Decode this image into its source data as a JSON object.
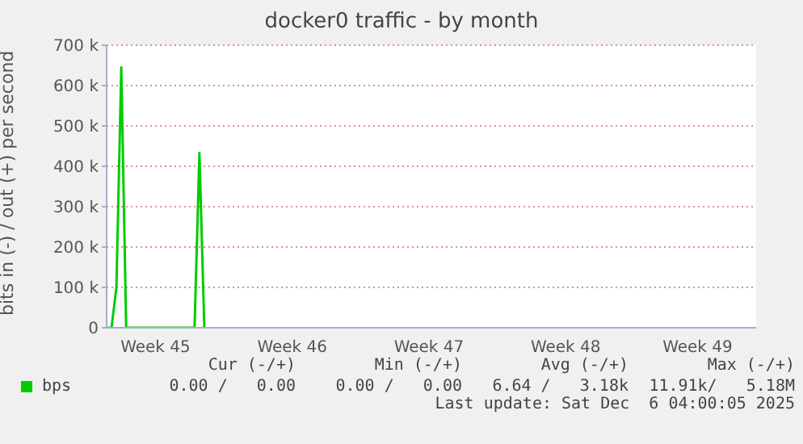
{
  "chart_data": {
    "type": "line",
    "title": "docker0 traffic - by month",
    "ylabel": "bits in (-) / out (+) per second",
    "categories": [
      null,
      null,
      null,
      null,
      null,
      null,
      null,
      null,
      null,
      null,
      "Week 45",
      null,
      null,
      null,
      null,
      null,
      null,
      null,
      null,
      null,
      null,
      null,
      null,
      null,
      null,
      null,
      null,
      null,
      null,
      null,
      null,
      null,
      null,
      null,
      null,
      null,
      null,
      null,
      "Week 46",
      null,
      null,
      null,
      null,
      null,
      null,
      null,
      null,
      null,
      null,
      null,
      null,
      null,
      null,
      null,
      null,
      null,
      null,
      null,
      null,
      null,
      null,
      null,
      null,
      null,
      null,
      null,
      "Week 47",
      null,
      null,
      null,
      null,
      null,
      null,
      null,
      null,
      null,
      null,
      null,
      null,
      null,
      null,
      null,
      null,
      null,
      null,
      null,
      null,
      null,
      null,
      null,
      null,
      null,
      null,
      null,
      "Week 48",
      null,
      null,
      null,
      null,
      null,
      null,
      null,
      null,
      null,
      null,
      null,
      null,
      null,
      null,
      null,
      null,
      null,
      null,
      null,
      null,
      null,
      null,
      null,
      null,
      null,
      null,
      "Week 49",
      null,
      null,
      null,
      null,
      null,
      null,
      null,
      null,
      null,
      null,
      null,
      null
    ],
    "series": [
      {
        "name": "bps",
        "color": "#00cc00",
        "values": [
          0,
          0,
          100000,
          645000,
          0,
          0,
          0,
          0,
          0,
          0,
          0,
          0,
          0,
          0,
          0,
          0,
          0,
          0,
          0,
          433000,
          0,
          null,
          null,
          null,
          null,
          null,
          null,
          null,
          null,
          null,
          null,
          null,
          null,
          null,
          null,
          null,
          null,
          null,
          null,
          null,
          null,
          null,
          null,
          null,
          null,
          null,
          null,
          null,
          null,
          null,
          null,
          null,
          null,
          null,
          null,
          null,
          null,
          null,
          null,
          null,
          null,
          null,
          null,
          null,
          null,
          null,
          null,
          null,
          null,
          null,
          null,
          null,
          null,
          null,
          null,
          null,
          null,
          null,
          null,
          null,
          null,
          null,
          null,
          null,
          null,
          null,
          null,
          null,
          null,
          null,
          null,
          null,
          null,
          null,
          null,
          null,
          null,
          null,
          null,
          null,
          null,
          null,
          null,
          null,
          null,
          null,
          null,
          null,
          null,
          null,
          null,
          null,
          null,
          null,
          null,
          null,
          null,
          null,
          null,
          null,
          null,
          null,
          null,
          null,
          null,
          null,
          null,
          null,
          null,
          null,
          null,
          null,
          null,
          null
        ]
      }
    ],
    "ylim": [
      0,
      700000
    ],
    "yticks": [
      {
        "value": 0,
        "label": "0"
      },
      {
        "value": 100000,
        "label": "100 k"
      },
      {
        "value": 200000,
        "label": "200 k"
      },
      {
        "value": 300000,
        "label": "300 k"
      },
      {
        "value": 400000,
        "label": "400 k"
      },
      {
        "value": 500000,
        "label": "500 k"
      },
      {
        "value": 600000,
        "label": "600 k"
      },
      {
        "value": 700000,
        "label": "700 k"
      }
    ],
    "grid": "y",
    "legend": "bottom",
    "marker": "none",
    "line_style": "solid",
    "annotations": [
      "Cur (-/+)",
      "Min (-/+)",
      "Avg (-/+)",
      "Max (-/+)",
      "0.00 /   0.00",
      "0.00 /   0.00",
      "6.64 /   3.18k",
      "11.91k/   5.18M",
      "Last update: Sat Dec  6 04:00:05 2025"
    ]
  }
}
